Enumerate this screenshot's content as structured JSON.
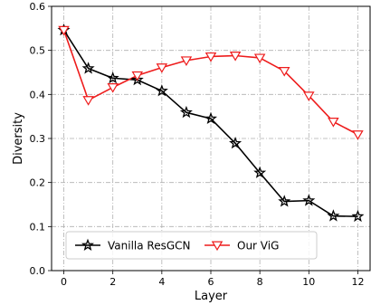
{
  "chart_data": {
    "type": "line",
    "xlabel": "Layer",
    "ylabel": "Diversity",
    "xlim": [
      -0.5,
      12.5
    ],
    "ylim": [
      0.0,
      0.6
    ],
    "xticks": [
      "0",
      "2",
      "4",
      "6",
      "8",
      "10",
      "12"
    ],
    "yticks": [
      "0.0",
      "0.1",
      "0.2",
      "0.3",
      "0.4",
      "0.5",
      "0.6"
    ],
    "grid": true,
    "legend_position": "bottom",
    "series": [
      {
        "name": "Vanilla ResGCN",
        "color": "#000000",
        "marker": "star",
        "x": [
          0,
          1,
          2,
          3,
          4,
          5,
          6,
          7,
          8,
          9,
          10,
          11,
          12
        ],
        "values": [
          0.546,
          0.459,
          0.437,
          0.433,
          0.408,
          0.359,
          0.345,
          0.289,
          0.222,
          0.157,
          0.159,
          0.124,
          0.123
        ]
      },
      {
        "name": "Our ViG",
        "color": "#ee1c1c",
        "marker": "triangle-down",
        "x": [
          0,
          1,
          2,
          3,
          4,
          5,
          6,
          7,
          8,
          9,
          10,
          11,
          12
        ],
        "values": [
          0.546,
          0.387,
          0.416,
          0.443,
          0.461,
          0.477,
          0.486,
          0.488,
          0.483,
          0.453,
          0.397,
          0.338,
          0.309
        ]
      }
    ]
  }
}
